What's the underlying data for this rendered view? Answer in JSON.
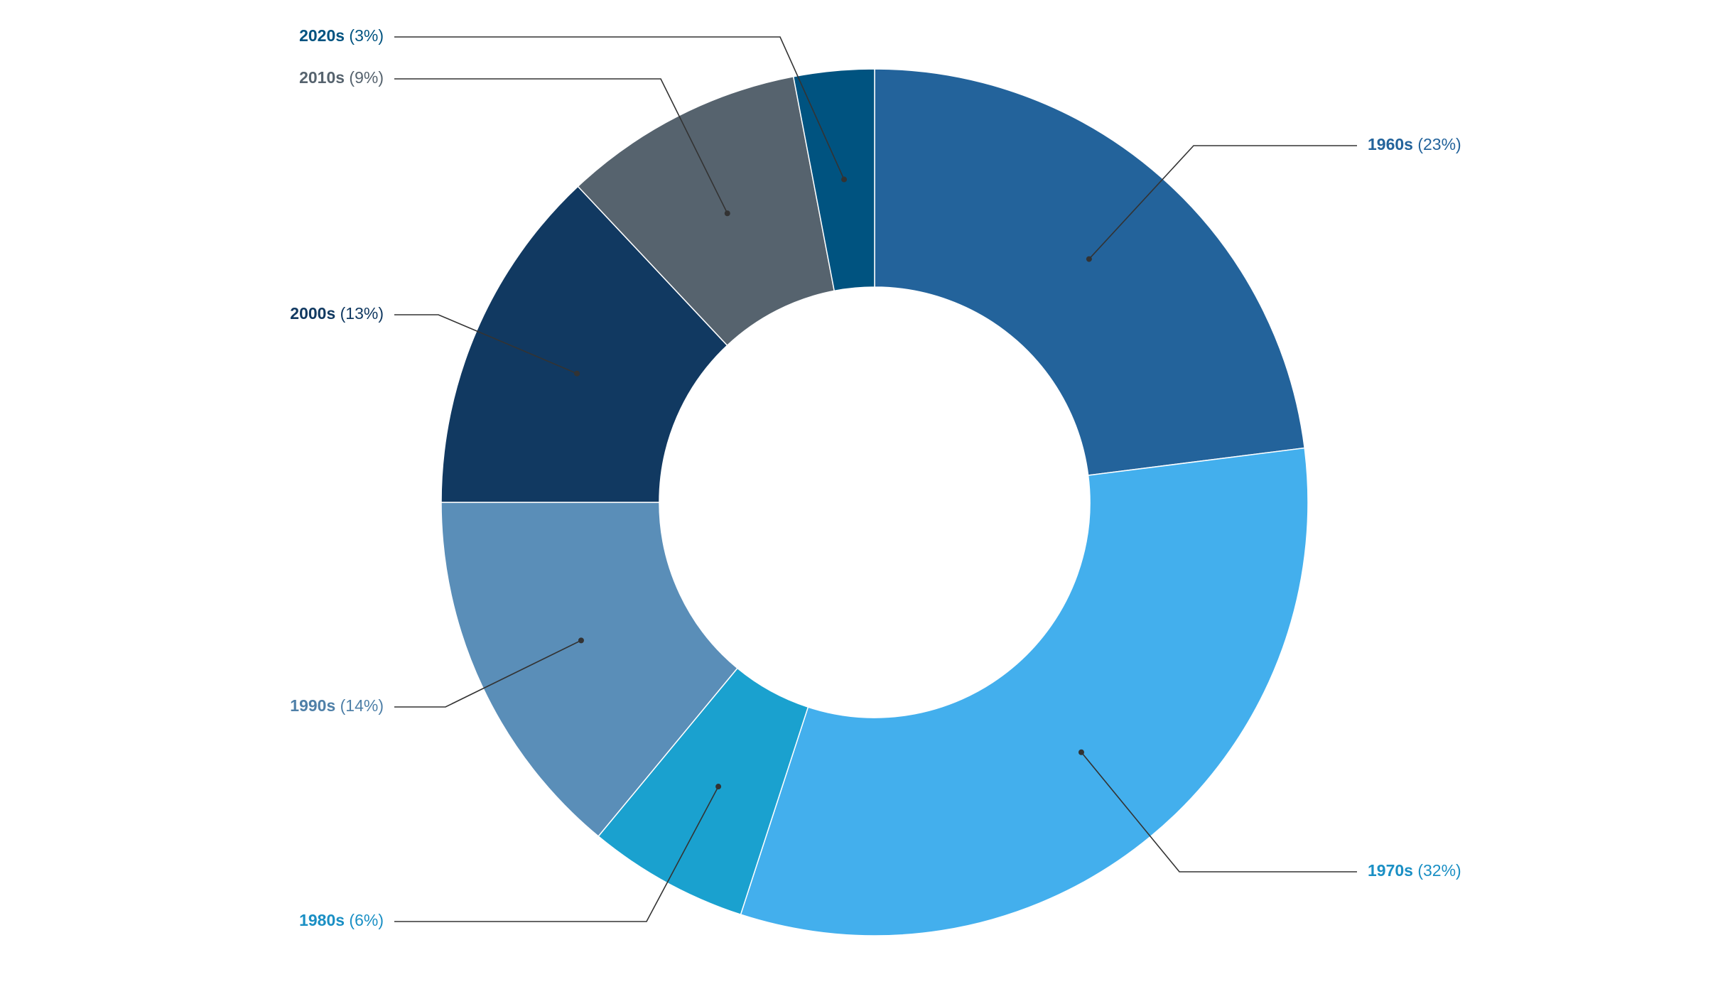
{
  "chart_data": {
    "type": "pie",
    "donut": true,
    "title": "",
    "legend": "none",
    "categories": [
      "1960s",
      "1970s",
      "1980s",
      "1990s",
      "2000s",
      "2010s",
      "2020s"
    ],
    "values": [
      23,
      32,
      6,
      14,
      13,
      9,
      3
    ],
    "unit": "%",
    "colors": [
      "#23639b",
      "#43afed",
      "#1aa1cf",
      "#5a8eb8",
      "#113961",
      "#56636e",
      "#005380"
    ],
    "label_colors": [
      "#23639b",
      "#1a8fc4",
      "#1a8fc4",
      "#4f80a8",
      "#113961",
      "#56636e",
      "#005380"
    ],
    "labels": [
      {
        "name": "1960s",
        "pct": "(23%)"
      },
      {
        "name": "1970s",
        "pct": "(32%)"
      },
      {
        "name": "1980s",
        "pct": "(6%)"
      },
      {
        "name": "1990s",
        "pct": "(14%)"
      },
      {
        "name": "2000s",
        "pct": "(13%)"
      },
      {
        "name": "2010s",
        "pct": "(9%)"
      },
      {
        "name": "2020s",
        "pct": "(3%)"
      }
    ]
  }
}
